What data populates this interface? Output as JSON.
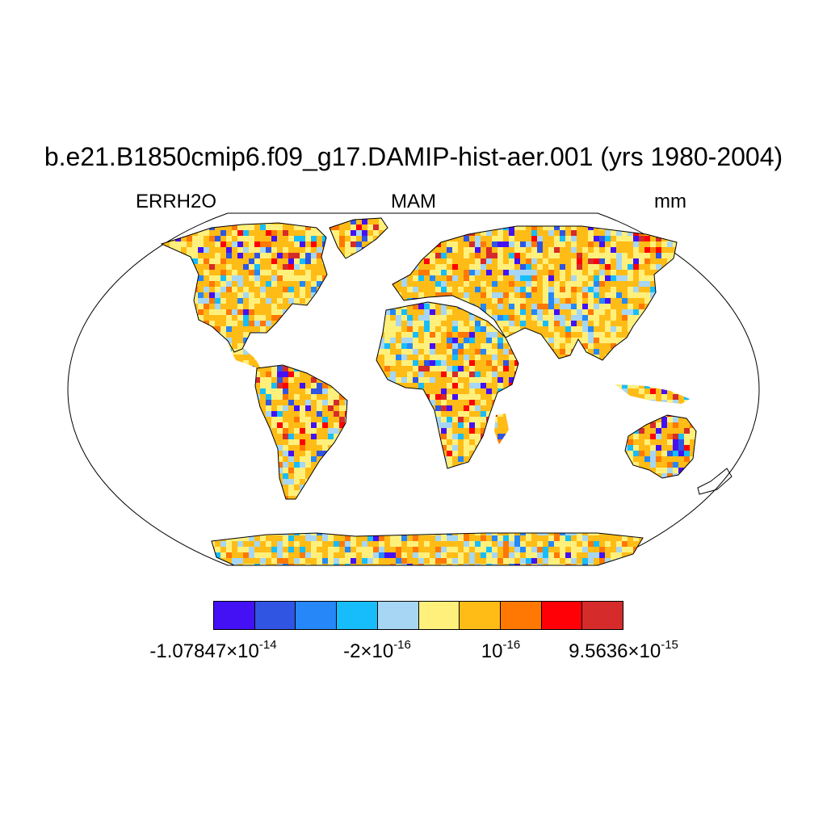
{
  "title": "b.e21.B1850cmip6.f09_g17.DAMIP-hist-aer.001 (yrs 1980-2004)",
  "left_label": "ERRH2O",
  "center_label": "MAM",
  "right_label": "mm",
  "colorbar": {
    "colors": [
      "#4411f5",
      "#3055e3",
      "#2587f8",
      "#17bdfa",
      "#a6d6f3",
      "#fff07c",
      "#ffbc16",
      "#ff7803",
      "#ff0006",
      "#d52b2b"
    ],
    "ticks": [
      {
        "mantissa": "-1.07847×10",
        "exponent": "-14"
      },
      {
        "mantissa": "-2×10",
        "exponent": "-16"
      },
      {
        "mantissa": "10",
        "exponent": "-16"
      },
      {
        "mantissa": "9.5636×10",
        "exponent": "-15"
      }
    ]
  },
  "map": {
    "projection": "robinson",
    "land_color": "#ffbc16",
    "coast_color": "#000000"
  }
}
